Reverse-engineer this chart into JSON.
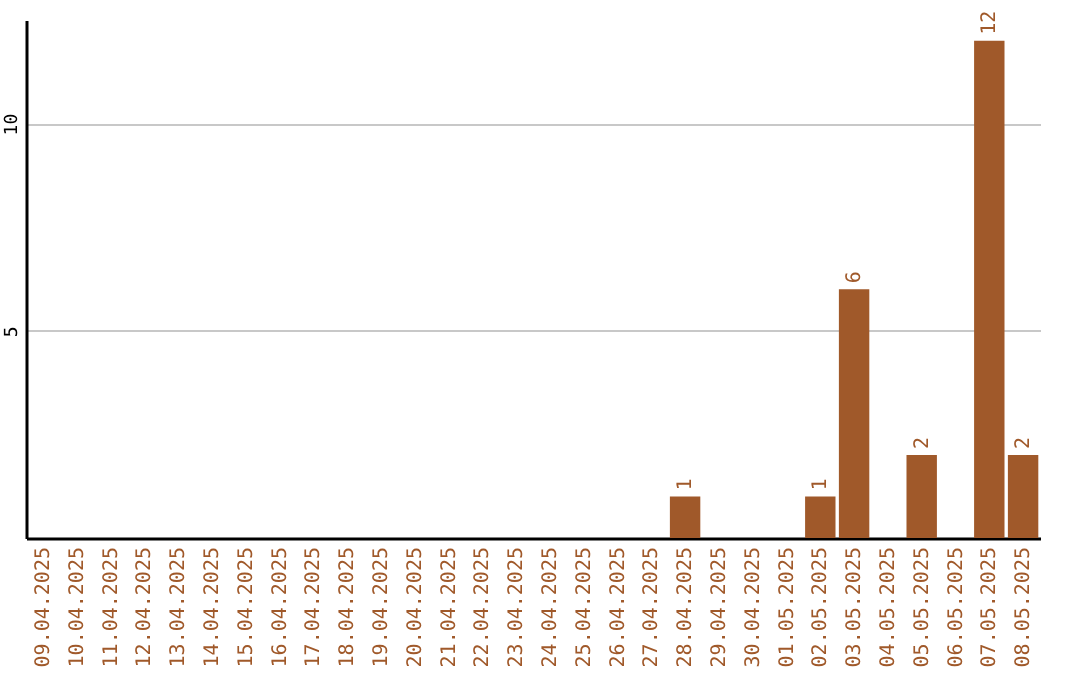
{
  "chart_data": {
    "type": "bar",
    "categories": [
      "09.04.2025",
      "10.04.2025",
      "11.04.2025",
      "12.04.2025",
      "13.04.2025",
      "14.04.2025",
      "15.04.2025",
      "16.04.2025",
      "17.04.2025",
      "18.04.2025",
      "19.04.2025",
      "20.04.2025",
      "21.04.2025",
      "22.04.2025",
      "23.04.2025",
      "24.04.2025",
      "25.04.2025",
      "26.04.2025",
      "27.04.2025",
      "28.04.2025",
      "29.04.2025",
      "30.04.2025",
      "01.05.2025",
      "02.05.2025",
      "03.05.2025",
      "04.05.2025",
      "05.05.2025",
      "06.05.2025",
      "07.05.2025",
      "08.05.2025"
    ],
    "values": [
      0,
      0,
      0,
      0,
      0,
      0,
      0,
      0,
      0,
      0,
      0,
      0,
      0,
      0,
      0,
      0,
      0,
      0,
      0,
      1,
      0,
      0,
      0,
      1,
      6,
      0,
      2,
      0,
      12,
      2
    ],
    "value_labels": [
      null,
      null,
      null,
      null,
      null,
      null,
      null,
      null,
      null,
      null,
      null,
      null,
      null,
      null,
      null,
      null,
      null,
      null,
      null,
      "1",
      null,
      null,
      null,
      "1",
      "6",
      null,
      "2",
      null,
      "12",
      "2"
    ],
    "color": "#a0592a",
    "ylim": [
      0,
      12.5
    ],
    "yticks": [
      5,
      10
    ],
    "grid": "y"
  }
}
